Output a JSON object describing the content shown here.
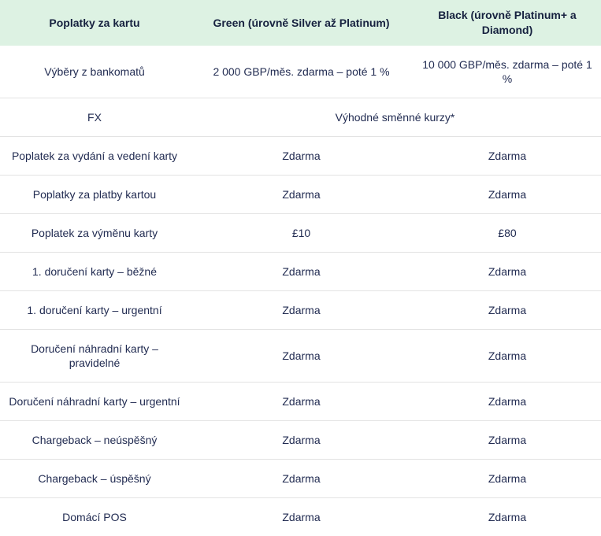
{
  "table": {
    "colors": {
      "header_bg": "#ddf2e3",
      "header_text": "#16213f",
      "text_color": "#222c52",
      "divider": "#e3e3e3",
      "page_bg": "#ffffff"
    },
    "columns": [
      {
        "label": "Poplatky za kartu"
      },
      {
        "label": "Green (úrovně Silver až Platinum)"
      },
      {
        "label": "Black (úrovně Platinum+ a Diamond)"
      }
    ],
    "rows": [
      {
        "label": "Výběry z bankomatů",
        "green": "2 000 GBP/měs. zdarma – poté 1 %",
        "black": "10 000 GBP/měs. zdarma – poté 1\n%"
      },
      {
        "label": "FX",
        "span_value": "Výhodné směnné kurzy*"
      },
      {
        "label": "Poplatek za vydání a vedení karty",
        "green": "Zdarma",
        "black": "Zdarma"
      },
      {
        "label": "Poplatky za platby kartou",
        "green": "Zdarma",
        "black": "Zdarma"
      },
      {
        "label": "Poplatek za výměnu karty",
        "green": "£10",
        "black": "£80"
      },
      {
        "label": "1. doručení karty – běžné",
        "green": "Zdarma",
        "black": "Zdarma"
      },
      {
        "label": "1. doručení karty – urgentní",
        "green": "Zdarma",
        "black": "Zdarma"
      },
      {
        "label": "Doručení náhradní karty –\npravidelné",
        "green": "Zdarma",
        "black": "Zdarma"
      },
      {
        "label": "Doručení náhradní karty – urgentní",
        "green": "Zdarma",
        "black": "Zdarma"
      },
      {
        "label": "Chargeback – neúspěšný",
        "green": "Zdarma",
        "black": "Zdarma"
      },
      {
        "label": "Chargeback – úspěšný",
        "green": "Zdarma",
        "black": "Zdarma"
      },
      {
        "label": "Domácí POS",
        "green": "Zdarma",
        "black": "Zdarma"
      }
    ]
  }
}
